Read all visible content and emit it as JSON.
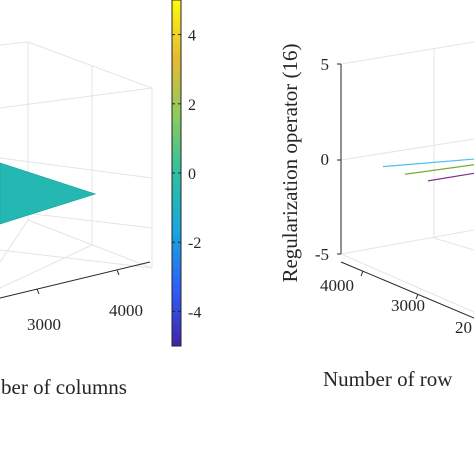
{
  "chart_data": [
    {
      "type": "surface",
      "title": "",
      "xlabel": "ber of columns",
      "ticks_columns": [
        "3000",
        "4000"
      ],
      "colorbar": {
        "ticks": [
          "4",
          "2",
          "0",
          "-2",
          "-4"
        ],
        "tick_values": [
          4,
          2,
          0,
          -2,
          -4
        ],
        "range": [
          -5,
          5
        ],
        "colormap": "parula",
        "colors": [
          "#3e26a8",
          "#2f5ffa",
          "#16a8dc",
          "#2fbfa0",
          "#8ccb5c",
          "#e8ba30",
          "#f9fb0e"
        ]
      },
      "surface_value": 0,
      "surface_color": "#25b8b2",
      "grid": true
    },
    {
      "type": "line3d",
      "title": "",
      "zlabel": "Regularization operator (16)",
      "xlabel": "Number of row",
      "z_ticks": [
        "5",
        "0",
        "-5"
      ],
      "z_tick_values": [
        5,
        0,
        -5
      ],
      "zlim": [
        -5,
        5
      ],
      "row_ticks": [
        "4000",
        "3000",
        "20"
      ],
      "series": [
        {
          "values_z": [
            -0.35,
            0.05
          ],
          "color": "#4dbeee"
        },
        {
          "values_z": [
            -0.75,
            -0.25
          ],
          "color": "#77ac30"
        },
        {
          "values_z": [
            -1.1,
            -0.7
          ],
          "color": "#7e2f8e"
        }
      ],
      "grid": true
    }
  ]
}
